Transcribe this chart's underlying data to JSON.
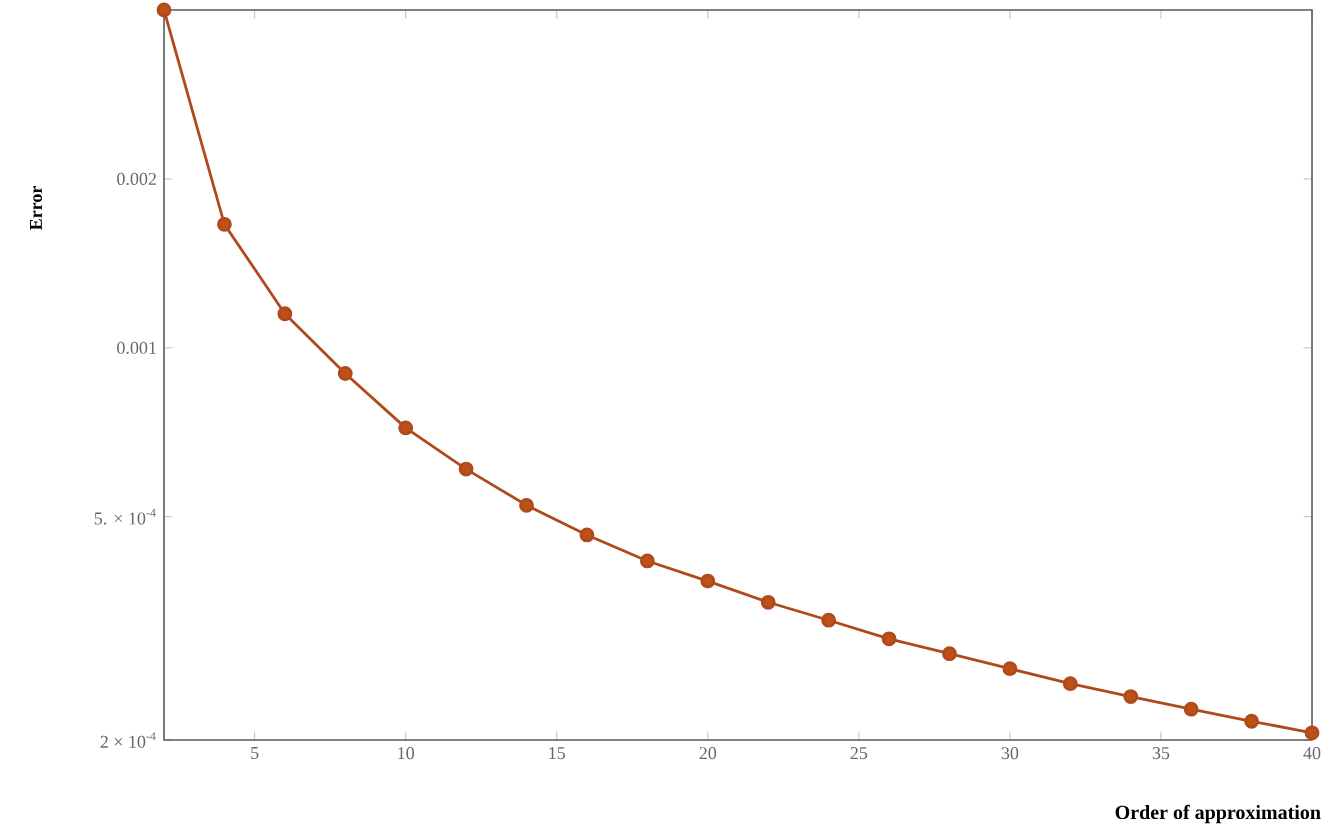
{
  "chart_data": {
    "type": "line",
    "xlabel": "Order of approximation",
    "ylabel": "Error",
    "log": "y",
    "marker": "circle",
    "line_style": "solid",
    "grid": false,
    "x": [
      2,
      4,
      6,
      8,
      10,
      12,
      14,
      16,
      18,
      20,
      22,
      24,
      26,
      28,
      30,
      32,
      34,
      36,
      38,
      40
    ],
    "series": [
      {
        "color": "#b04a1c",
        "values": [
          0.004,
          0.00166,
          0.00115,
          0.0009,
          0.00072,
          0.000608,
          0.000524,
          0.000464,
          0.000417,
          0.000384,
          0.000352,
          0.000327,
          0.000303,
          0.000285,
          0.000268,
          0.000252,
          0.000239,
          0.000227,
          0.000216,
          0.000206
        ]
      }
    ],
    "xlim": [
      2,
      40
    ],
    "ylim": [
      0.0002,
      0.004
    ],
    "xticks": [
      5,
      10,
      15,
      20,
      25,
      30,
      35,
      40
    ],
    "yticks": [
      {
        "value": 0.0002,
        "label": "2 × 10$^{-4}$"
      },
      {
        "value": 0.0005,
        "label": "5. × 10$^{-4}$"
      },
      {
        "value": 0.001,
        "label": "0.001"
      },
      {
        "value": 0.002,
        "label": "0.002"
      }
    ]
  }
}
